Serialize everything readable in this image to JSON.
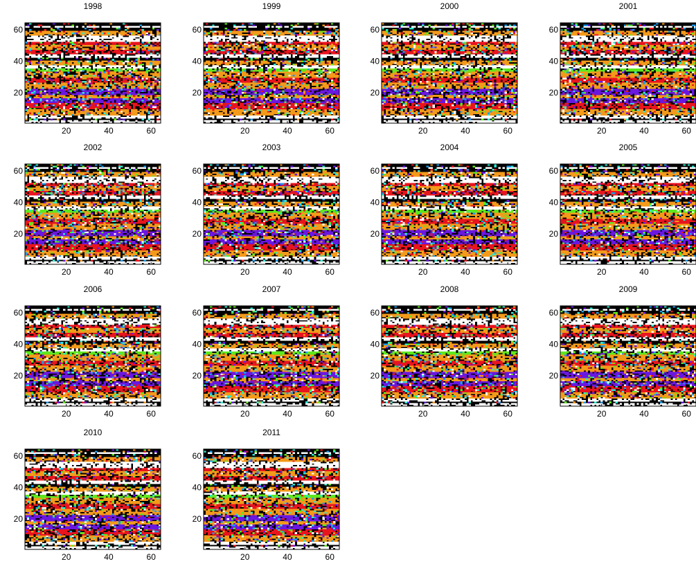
{
  "chart_data": {
    "type": "heatmap",
    "layout": {
      "rows": 4,
      "cols": 4
    },
    "panel_count": 14,
    "panels": [
      {
        "title": "1998"
      },
      {
        "title": "1999"
      },
      {
        "title": "2000"
      },
      {
        "title": "2001"
      },
      {
        "title": "2002"
      },
      {
        "title": "2003"
      },
      {
        "title": "2004"
      },
      {
        "title": "2005"
      },
      {
        "title": "2006"
      },
      {
        "title": "2007"
      },
      {
        "title": "2008"
      },
      {
        "title": "2009"
      },
      {
        "title": "2010"
      },
      {
        "title": "2011"
      }
    ],
    "grid_size": [
      64,
      64
    ],
    "xlim": [
      1,
      64
    ],
    "ylim": [
      1,
      64
    ],
    "x_ticks": [
      20,
      40,
      60
    ],
    "y_ticks": [
      20,
      40,
      60
    ],
    "x_tick_labels": [
      "20",
      "40",
      "60"
    ],
    "y_tick_labels": [
      "20",
      "40",
      "60"
    ],
    "category_colors": {
      "background": "#000000",
      "white": "#ffffff",
      "red": "#e8141e",
      "orange": "#f39a1b",
      "purple": "#6a17e0",
      "cyan": "#2ee8d0",
      "green": "#5fe81e",
      "blue": "#1b9be8"
    },
    "row_pattern": [
      {
        "y_from": 1,
        "y_to": 2,
        "main": "white"
      },
      {
        "y_from": 3,
        "y_to": 3,
        "main": "black"
      },
      {
        "y_from": 4,
        "y_to": 5,
        "main": "white"
      },
      {
        "y_from": 6,
        "y_to": 9,
        "main": "orange"
      },
      {
        "y_from": 10,
        "y_to": 13,
        "main": "red"
      },
      {
        "y_from": 14,
        "y_to": 16,
        "main": "purple"
      },
      {
        "y_from": 17,
        "y_to": 18,
        "main": "orange"
      },
      {
        "y_from": 19,
        "y_to": 22,
        "main": "purple"
      },
      {
        "y_from": 23,
        "y_to": 26,
        "main": "orange"
      },
      {
        "y_from": 27,
        "y_to": 29,
        "main": "red"
      },
      {
        "y_from": 30,
        "y_to": 33,
        "main": "orange"
      },
      {
        "y_from": 34,
        "y_to": 35,
        "main": "green"
      },
      {
        "y_from": 36,
        "y_to": 37,
        "main": "white"
      },
      {
        "y_from": 38,
        "y_to": 40,
        "main": "orange"
      },
      {
        "y_from": 41,
        "y_to": 42,
        "main": "black"
      },
      {
        "y_from": 43,
        "y_to": 44,
        "main": "white"
      },
      {
        "y_from": 45,
        "y_to": 47,
        "main": "red"
      },
      {
        "y_from": 48,
        "y_to": 50,
        "main": "orange"
      },
      {
        "y_from": 51,
        "y_to": 52,
        "main": "red"
      },
      {
        "y_from": 53,
        "y_to": 56,
        "main": "white"
      },
      {
        "y_from": 57,
        "y_to": 59,
        "main": "orange"
      },
      {
        "y_from": 60,
        "y_to": 61,
        "main": "black"
      },
      {
        "y_from": 62,
        "y_to": 62,
        "main": "white"
      },
      {
        "y_from": 63,
        "y_to": 64,
        "main": "black"
      }
    ]
  }
}
